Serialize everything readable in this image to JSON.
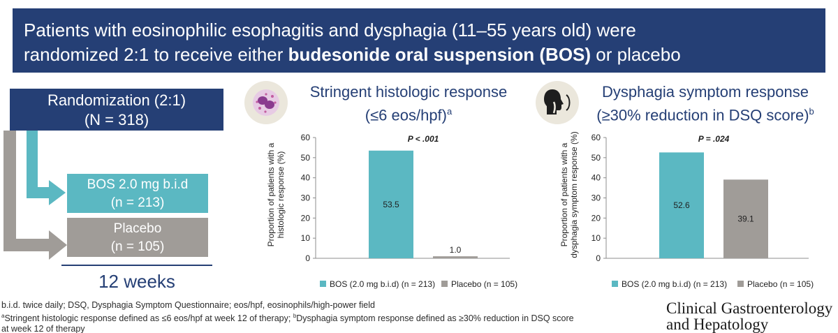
{
  "banner": {
    "line1": "Patients with eosinophilic esophagitis and dysphagia (11–55 years old) were",
    "line2_prefix": "randomized 2:1 to receive either ",
    "line2_bold": "budesonide oral suspension (BOS)",
    "line2_suffix": " or placebo"
  },
  "flowchart": {
    "randomization_label": "Randomization (2:1)",
    "randomization_n": "(N = 318)",
    "bos_label": "BOS 2.0 mg b.i.d",
    "bos_n": "(n = 213)",
    "placebo_label": "Placebo",
    "placebo_n": "(n = 105)",
    "duration": "12 weeks"
  },
  "colors": {
    "navy": "#253f75",
    "teal": "#5bb8c2",
    "gray": "#a09c98",
    "icon_bg": "#ebe7dc"
  },
  "icons": {
    "histology": "eosinophil-cell-icon",
    "symptom": "swallowing-throat-icon"
  },
  "chart_data": [
    {
      "type": "bar",
      "title": "Stringent histologic response",
      "subtitle": "(≤6 eos/hpf)",
      "title_sup": "a",
      "ylabel_line1": "Proportion of patients with a",
      "ylabel_line2": "histologic response (%)",
      "ylim": [
        0,
        60
      ],
      "yticks": [
        0,
        10,
        20,
        30,
        40,
        50,
        60
      ],
      "p_value": "P < .001",
      "categories": [
        "BOS (2.0 mg b.i.d) (n = 213)",
        "Placebo (n = 105)"
      ],
      "values": [
        53.5,
        1.0
      ],
      "value_labels": [
        "53.5",
        "1.0"
      ],
      "legend_position": "bottom"
    },
    {
      "type": "bar",
      "title": "Dysphagia symptom response",
      "subtitle": "(≥30% reduction in DSQ score)",
      "title_sup": "b",
      "ylabel_line1": "Proportion of patients with a",
      "ylabel_line2": "dysphagia symptom response (%)",
      "ylim": [
        0,
        60
      ],
      "yticks": [
        0,
        10,
        20,
        30,
        40,
        50,
        60
      ],
      "p_value": "P = .024",
      "categories": [
        "BOS (2.0 mg b.i.d) (n = 213)",
        "Placebo (n = 105)"
      ],
      "values": [
        52.6,
        39.1
      ],
      "value_labels": [
        "52.6",
        "39.1"
      ],
      "legend_position": "bottom"
    }
  ],
  "footnotes": {
    "line1": "b.i.d. twice daily; DSQ, Dysphagia Symptom Questionnaire; eos/hpf, eosinophils/high-power field",
    "line2_sup_a": "a",
    "line2_a": "Stringent histologic response defined as ≤6 eos/hpf at week 12 of therapy; ",
    "line2_sup_b": "b",
    "line2_b": "Dysphagia symptom response defined as ≥30% reduction in DSQ score",
    "line3": "at week 12 of therapy"
  },
  "journal": {
    "line1": "Clinical Gastroenterology",
    "line2": "and Hepatology"
  }
}
